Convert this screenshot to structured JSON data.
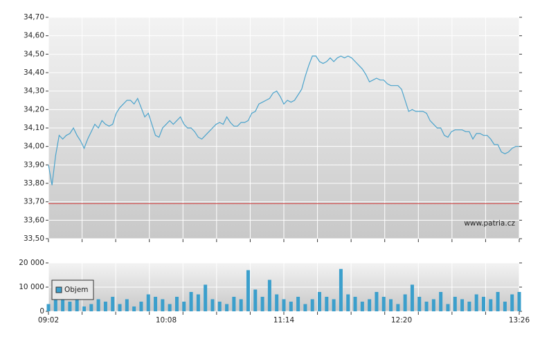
{
  "chart_data": [
    {
      "type": "line",
      "x": [
        "09:02",
        "09:04",
        "09:06",
        "09:08",
        "09:10",
        "09:12",
        "09:14",
        "09:16",
        "09:18",
        "09:20",
        "09:22",
        "09:24",
        "09:26",
        "09:28",
        "09:30",
        "09:32",
        "09:34",
        "09:36",
        "09:38",
        "09:40",
        "09:42",
        "09:44",
        "09:46",
        "09:48",
        "09:50",
        "09:52",
        "09:54",
        "09:56",
        "09:58",
        "10:00",
        "10:02",
        "10:04",
        "10:06",
        "10:08",
        "10:10",
        "10:12",
        "10:14",
        "10:16",
        "10:18",
        "10:20",
        "10:22",
        "10:24",
        "10:26",
        "10:28",
        "10:30",
        "10:32",
        "10:34",
        "10:36",
        "10:38",
        "10:40",
        "10:42",
        "10:44",
        "10:46",
        "10:48",
        "10:50",
        "10:52",
        "10:54",
        "10:56",
        "10:58",
        "11:00",
        "11:02",
        "11:04",
        "11:06",
        "11:08",
        "11:10",
        "11:12",
        "11:14",
        "11:16",
        "11:18",
        "11:20",
        "11:22",
        "11:24",
        "11:26",
        "11:28",
        "11:30",
        "11:32",
        "11:34",
        "11:36",
        "11:38",
        "11:40",
        "11:42",
        "11:44",
        "11:46",
        "11:48",
        "11:50",
        "11:52",
        "11:54",
        "11:56",
        "11:58",
        "12:00",
        "12:02",
        "12:04",
        "12:06",
        "12:08",
        "12:10",
        "12:12",
        "12:14",
        "12:16",
        "12:18",
        "12:20",
        "12:22",
        "12:24",
        "12:26",
        "12:28",
        "12:30",
        "12:32",
        "12:34",
        "12:36",
        "12:38",
        "12:40",
        "12:42",
        "12:44",
        "12:46",
        "12:48",
        "12:50",
        "12:52",
        "12:54",
        "12:56",
        "12:58",
        "13:00",
        "13:02",
        "13:04",
        "13:06",
        "13:08",
        "13:10",
        "13:12",
        "13:14",
        "13:16",
        "13:18",
        "13:20",
        "13:22",
        "13:24",
        "13:26"
      ],
      "xlim": [
        "09:02",
        "13:26"
      ],
      "ylim": [
        33.5,
        34.7
      ],
      "yticks": [
        {
          "value": 33.5,
          "label": "33,50"
        },
        {
          "value": 33.6,
          "label": "33,60"
        },
        {
          "value": 33.7,
          "label": "33,70"
        },
        {
          "value": 33.8,
          "label": "33,80"
        },
        {
          "value": 33.9,
          "label": "33,90"
        },
        {
          "value": 34.0,
          "label": "34,00"
        },
        {
          "value": 34.1,
          "label": "34,10"
        },
        {
          "value": 34.2,
          "label": "34,20"
        },
        {
          "value": 34.3,
          "label": "34,30"
        },
        {
          "value": 34.4,
          "label": "34,40"
        },
        {
          "value": 34.5,
          "label": "34,50"
        },
        {
          "value": 34.6,
          "label": "34,60"
        },
        {
          "value": 34.7,
          "label": "34,70"
        }
      ],
      "grid": true,
      "series": [
        {
          "color": "#4aa3cc",
          "values": [
            33.9,
            33.79,
            33.95,
            34.06,
            34.04,
            34.06,
            34.07,
            34.1,
            34.06,
            34.03,
            33.99,
            34.04,
            34.08,
            34.12,
            34.1,
            34.14,
            34.12,
            34.11,
            34.12,
            34.18,
            34.21,
            34.23,
            34.25,
            34.25,
            34.23,
            34.26,
            34.21,
            34.16,
            34.18,
            34.12,
            34.06,
            34.05,
            34.1,
            34.12,
            34.14,
            34.12,
            34.14,
            34.16,
            34.12,
            34.1,
            34.1,
            34.08,
            34.05,
            34.04,
            34.06,
            34.08,
            34.1,
            34.12,
            34.13,
            34.12,
            34.16,
            34.13,
            34.11,
            34.11,
            34.13,
            34.13,
            34.14,
            34.18,
            34.19,
            34.23,
            34.24,
            34.25,
            34.26,
            34.29,
            34.3,
            34.27,
            34.23,
            34.25,
            34.24,
            34.25,
            34.28,
            34.31,
            34.38,
            34.44,
            34.49,
            34.49,
            34.46,
            34.45,
            34.46,
            34.48,
            34.46,
            34.48,
            34.49,
            34.48,
            34.49,
            34.48,
            34.46,
            34.44,
            34.42,
            34.39,
            34.35,
            34.36,
            34.37,
            34.36,
            34.36,
            34.34,
            34.33,
            34.33,
            34.33,
            34.31,
            34.25,
            34.19,
            34.2,
            34.19,
            34.19,
            34.19,
            34.18,
            34.14,
            34.12,
            34.1,
            34.1,
            34.06,
            34.05,
            34.08,
            34.09,
            34.09,
            34.09,
            34.08,
            34.08,
            34.04,
            34.07,
            34.07,
            34.06,
            34.06,
            34.04,
            34.01,
            34.01,
            33.97,
            33.96,
            33.97,
            33.99,
            34.0,
            34.0
          ]
        }
      ],
      "reference_line": {
        "value": 33.69,
        "color": "#d04848"
      },
      "watermark": "www.patria.cz"
    },
    {
      "type": "bar",
      "x": [
        "09:02",
        "09:06",
        "09:10",
        "09:14",
        "09:18",
        "09:22",
        "09:26",
        "09:30",
        "09:34",
        "09:38",
        "09:42",
        "09:46",
        "09:50",
        "09:54",
        "09:58",
        "10:02",
        "10:06",
        "10:10",
        "10:14",
        "10:18",
        "10:22",
        "10:26",
        "10:30",
        "10:34",
        "10:38",
        "10:42",
        "10:46",
        "10:50",
        "10:54",
        "10:58",
        "11:02",
        "11:06",
        "11:10",
        "11:14",
        "11:18",
        "11:22",
        "11:26",
        "11:30",
        "11:34",
        "11:38",
        "11:42",
        "11:46",
        "11:50",
        "11:54",
        "11:58",
        "12:02",
        "12:06",
        "12:10",
        "12:14",
        "12:18",
        "12:22",
        "12:26",
        "12:30",
        "12:34",
        "12:38",
        "12:42",
        "12:46",
        "12:50",
        "12:54",
        "12:58",
        "13:02",
        "13:06",
        "13:10",
        "13:14",
        "13:18",
        "13:22",
        "13:26"
      ],
      "xlim": [
        "09:02",
        "13:26"
      ],
      "xticks": [
        "09:02",
        "10:08",
        "11:14",
        "12:20",
        "13:26"
      ],
      "ylim": [
        0,
        20000
      ],
      "yticks": [
        0,
        {
          "value": 10000,
          "label": "10 000"
        },
        {
          "value": 20000,
          "label": "20 000"
        }
      ],
      "grid": true,
      "legend": "upper left",
      "series": [
        {
          "name": "Objem",
          "color": "#3b9fcc",
          "values": [
            3000,
            6000,
            5000,
            4000,
            7000,
            2000,
            3000,
            5000,
            4000,
            6000,
            3000,
            5000,
            2000,
            4000,
            7000,
            6000,
            5000,
            3000,
            6000,
            4000,
            8000,
            7000,
            11000,
            5000,
            4000,
            3000,
            6000,
            5000,
            17000,
            9000,
            6000,
            13000,
            7000,
            5000,
            4000,
            6000,
            3000,
            5000,
            8000,
            6000,
            5000,
            17500,
            7000,
            6000,
            4000,
            5000,
            8000,
            6000,
            5000,
            3000,
            7000,
            11000,
            6000,
            4000,
            5000,
            8000,
            3000,
            6000,
            5000,
            4000,
            7000,
            6000,
            5000,
            8000,
            4000,
            7000,
            8000
          ]
        }
      ]
    }
  ]
}
